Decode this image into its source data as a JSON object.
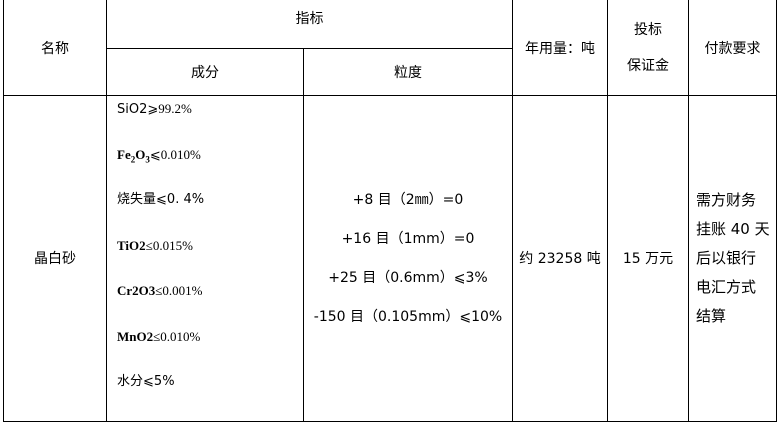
{
  "header": {
    "name": "名称",
    "indicator": "指标",
    "composition": "成分",
    "granularity": "粒度",
    "annual_usage": "年用量：吨",
    "bid_deposit_line1": "投标",
    "bid_deposit_line2": "保证金",
    "payment_terms": "付款要求"
  },
  "row": {
    "name": "晶白砂",
    "composition": [
      {
        "label": "SiO2",
        "op": "⩾",
        "value": "99.2%"
      },
      {
        "label": "Fe2O3",
        "op": "⩽",
        "value": "0.010%"
      },
      {
        "label": "烧失量",
        "op": "⩽",
        "value": "0. 4%"
      },
      {
        "label": "TiO2",
        "op": "≤",
        "value": "0.015%"
      },
      {
        "label": "Cr2O3",
        "op": "≤",
        "value": "0.001%"
      },
      {
        "label": "MnO2",
        "op": "≤",
        "value": "0.010%"
      },
      {
        "label": "水分",
        "op": "⩽",
        "value": "5%"
      }
    ],
    "granularity": [
      "+8 目（2㎜）=0",
      "+16 目（1mm）=0",
      "+25 目（0.6mm）⩽3%",
      "-150 目（0.105mm）⩽10%"
    ],
    "annual_usage": "约 23258 吨",
    "bid_deposit": "15 万元",
    "payment_terms": [
      "需方财务",
      "挂账 40 天",
      "后以银行",
      "电汇方式",
      "结算"
    ]
  }
}
